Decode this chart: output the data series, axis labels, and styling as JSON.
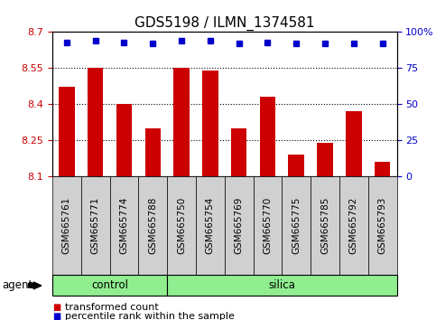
{
  "title": "GDS5198 / ILMN_1374581",
  "samples": [
    "GSM665761",
    "GSM665771",
    "GSM665774",
    "GSM665788",
    "GSM665750",
    "GSM665754",
    "GSM665769",
    "GSM665770",
    "GSM665775",
    "GSM665785",
    "GSM665792",
    "GSM665793"
  ],
  "transformed_count": [
    8.47,
    8.55,
    8.4,
    8.3,
    8.55,
    8.54,
    8.3,
    8.43,
    8.19,
    8.24,
    8.37,
    8.16
  ],
  "percentile_rank": [
    93,
    94,
    93,
    92,
    94,
    94,
    92,
    93,
    92,
    92,
    92,
    92
  ],
  "ylim_left": [
    8.1,
    8.7
  ],
  "ylim_right": [
    0,
    100
  ],
  "yticks_left": [
    8.1,
    8.25,
    8.4,
    8.55,
    8.7
  ],
  "yticks_right": [
    0,
    25,
    50,
    75,
    100
  ],
  "ytick_labels_left": [
    "8.1",
    "8.25",
    "8.4",
    "8.55",
    "8.7"
  ],
  "ytick_labels_right": [
    "0",
    "25",
    "50",
    "75",
    "100%"
  ],
  "bar_color": "#cc0000",
  "dot_color": "#0000cc",
  "grid_color": "#000000",
  "bar_bottom": 8.1,
  "control_samples": 4,
  "group_labels": [
    "control",
    "silica"
  ],
  "group_color": "#90EE90",
  "agent_label": "agent",
  "legend_bar_label": "transformed count",
  "legend_dot_label": "percentile rank within the sample",
  "left_tick_color": "#cc0000",
  "right_tick_color": "#0000cc",
  "title_fontsize": 11,
  "tick_fontsize": 8,
  "label_fontsize": 8.5,
  "xtick_fontsize": 7.5,
  "cell_bg_color": "#d0d0d0",
  "plot_bg_color": "#ffffff"
}
